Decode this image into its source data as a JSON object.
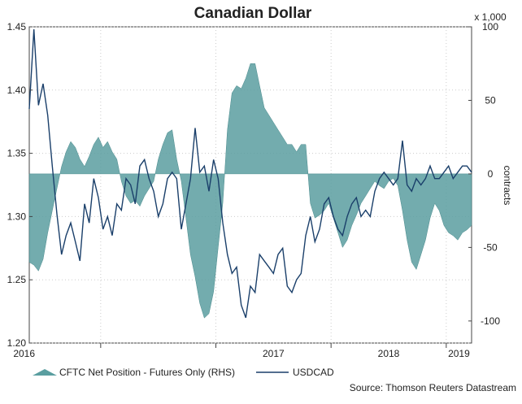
{
  "chart_data": {
    "type": "line+area",
    "title": "Canadian Dollar",
    "source": "Source: Thomson Reuters Datastream",
    "left_axis": {
      "ylim": [
        1.2,
        1.45
      ],
      "ticks": [
        1.2,
        1.25,
        1.3,
        1.35,
        1.4,
        1.45
      ],
      "tick_labels": [
        "1.20",
        "1.25",
        "1.30",
        "1.35",
        "1.40",
        "1.45"
      ]
    },
    "right_axis": {
      "ylim": [
        -115,
        100
      ],
      "ticks": [
        -100,
        -50,
        0,
        50,
        100
      ],
      "tick_labels": [
        "-100",
        "-50",
        "0",
        "50",
        "100"
      ],
      "unit_label": "x 1,000",
      "ylabel": "contracts"
    },
    "x_axis": {
      "xlim": [
        2015.38,
        2019.22
      ],
      "year_ticks": [
        2016,
        2017,
        2018,
        2019
      ],
      "year_labels": [
        "2016",
        "2017",
        "2018",
        "2019"
      ]
    },
    "series": [
      {
        "name": "CFTC Net Position - Futures Only (RHS)",
        "kind": "area",
        "axis": "right",
        "color": "#5a9ea0",
        "x": [
          2015.38,
          2015.42,
          2015.46,
          2015.5,
          2015.54,
          2015.58,
          2015.62,
          2015.66,
          2015.7,
          2015.74,
          2015.78,
          2015.82,
          2015.86,
          2015.9,
          2015.94,
          2015.98,
          2016.02,
          2016.06,
          2016.1,
          2016.14,
          2016.18,
          2016.22,
          2016.26,
          2016.3,
          2016.34,
          2016.38,
          2016.42,
          2016.46,
          2016.5,
          2016.54,
          2016.58,
          2016.62,
          2016.66,
          2016.7,
          2016.74,
          2016.78,
          2016.82,
          2016.86,
          2016.9,
          2016.94,
          2016.98,
          2017.02,
          2017.06,
          2017.1,
          2017.14,
          2017.18,
          2017.22,
          2017.26,
          2017.3,
          2017.34,
          2017.38,
          2017.42,
          2017.46,
          2017.5,
          2017.54,
          2017.58,
          2017.62,
          2017.66,
          2017.7,
          2017.74,
          2017.78,
          2017.82,
          2017.86,
          2017.9,
          2017.94,
          2017.98,
          2018.02,
          2018.06,
          2018.1,
          2018.14,
          2018.18,
          2018.22,
          2018.26,
          2018.3,
          2018.34,
          2018.38,
          2018.42,
          2018.46,
          2018.5,
          2018.54,
          2018.58,
          2018.62,
          2018.66,
          2018.7,
          2018.74,
          2018.78,
          2018.82,
          2018.86,
          2018.9,
          2018.94,
          2018.98,
          2019.02,
          2019.06,
          2019.1,
          2019.14,
          2019.18,
          2019.22
        ],
        "values": [
          -60,
          -62,
          -66,
          -58,
          -40,
          -25,
          -10,
          5,
          15,
          22,
          18,
          10,
          5,
          12,
          20,
          25,
          18,
          22,
          15,
          10,
          -5,
          -15,
          -20,
          -18,
          -22,
          -15,
          -10,
          -5,
          10,
          20,
          28,
          30,
          10,
          -5,
          -30,
          -55,
          -70,
          -88,
          -98,
          -95,
          -80,
          -50,
          -20,
          30,
          55,
          60,
          58,
          65,
          75,
          75,
          60,
          45,
          40,
          35,
          30,
          25,
          20,
          20,
          15,
          20,
          20,
          -20,
          -30,
          -28,
          -25,
          -20,
          -30,
          -40,
          -50,
          -45,
          -35,
          -28,
          -20,
          -15,
          -10,
          -5,
          -8,
          -10,
          -5,
          -3,
          -8,
          -25,
          -45,
          -60,
          -65,
          -55,
          -45,
          -30,
          -20,
          -25,
          -35,
          -40,
          -42,
          -45,
          -40,
          -38,
          -35
        ]
      },
      {
        "name": "USDCAD",
        "kind": "line",
        "axis": "left",
        "color": "#1a3f6a",
        "x": [
          2015.38,
          2015.42,
          2015.46,
          2015.5,
          2015.54,
          2015.58,
          2015.62,
          2015.66,
          2015.7,
          2015.74,
          2015.78,
          2015.82,
          2015.86,
          2015.9,
          2015.94,
          2015.98,
          2016.02,
          2016.06,
          2016.1,
          2016.14,
          2016.18,
          2016.22,
          2016.26,
          2016.3,
          2016.34,
          2016.38,
          2016.42,
          2016.46,
          2016.5,
          2016.54,
          2016.58,
          2016.62,
          2016.66,
          2016.7,
          2016.74,
          2016.78,
          2016.82,
          2016.86,
          2016.9,
          2016.94,
          2016.98,
          2017.02,
          2017.06,
          2017.1,
          2017.14,
          2017.18,
          2017.22,
          2017.26,
          2017.3,
          2017.34,
          2017.38,
          2017.42,
          2017.46,
          2017.5,
          2017.54,
          2017.58,
          2017.62,
          2017.66,
          2017.7,
          2017.74,
          2017.78,
          2017.82,
          2017.86,
          2017.9,
          2017.94,
          2017.98,
          2018.02,
          2018.06,
          2018.1,
          2018.14,
          2018.18,
          2018.22,
          2018.26,
          2018.3,
          2018.34,
          2018.38,
          2018.42,
          2018.46,
          2018.5,
          2018.54,
          2018.58,
          2018.62,
          2018.66,
          2018.7,
          2018.74,
          2018.78,
          2018.82,
          2018.86,
          2018.9,
          2018.94,
          2018.98,
          2019.02,
          2019.06,
          2019.1,
          2019.14,
          2019.18,
          2019.22
        ],
        "values": [
          1.385,
          1.448,
          1.388,
          1.405,
          1.38,
          1.34,
          1.302,
          1.27,
          1.285,
          1.295,
          1.28,
          1.265,
          1.31,
          1.295,
          1.33,
          1.315,
          1.29,
          1.3,
          1.285,
          1.31,
          1.305,
          1.33,
          1.325,
          1.31,
          1.34,
          1.345,
          1.33,
          1.32,
          1.3,
          1.31,
          1.33,
          1.335,
          1.33,
          1.29,
          1.31,
          1.33,
          1.37,
          1.335,
          1.34,
          1.32,
          1.345,
          1.33,
          1.295,
          1.27,
          1.255,
          1.26,
          1.23,
          1.22,
          1.245,
          1.24,
          1.27,
          1.265,
          1.26,
          1.255,
          1.27,
          1.275,
          1.245,
          1.24,
          1.25,
          1.255,
          1.285,
          1.3,
          1.28,
          1.29,
          1.31,
          1.315,
          1.3,
          1.29,
          1.285,
          1.3,
          1.31,
          1.315,
          1.3,
          1.305,
          1.3,
          1.32,
          1.33,
          1.335,
          1.33,
          1.325,
          1.33,
          1.36,
          1.325,
          1.32,
          1.33,
          1.325,
          1.33,
          1.34,
          1.33,
          1.33,
          1.335,
          1.34,
          1.33,
          1.335,
          1.34,
          1.34,
          1.335
        ]
      }
    ]
  }
}
